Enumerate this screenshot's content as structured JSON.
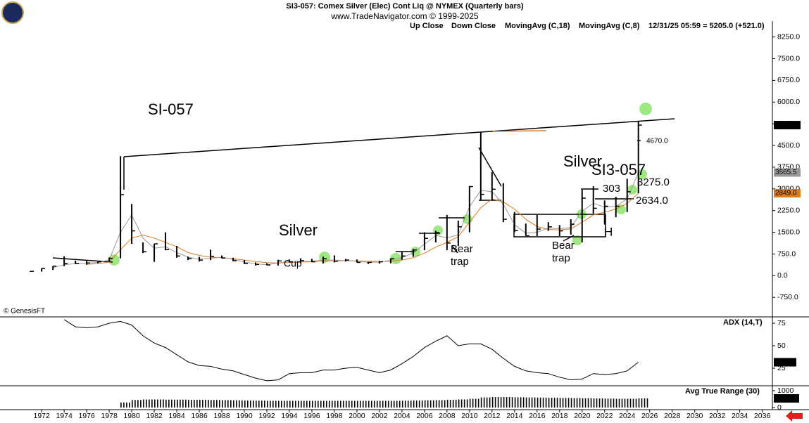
{
  "chart_data": [
    {
      "type": "ohlc",
      "title": "SI3-057:  Comex Silver (Elec) Cont Liq @ NYMEX  (Quarterly bars)",
      "subtitle": "www.TradeNavigator.com © 1999-2025",
      "status": "12/31/25 05:59 = 5205.0 (+521.0)",
      "credit": "© GenesisFT",
      "legend": [
        "Up Close",
        "Down Close"
      ],
      "color": "#000000",
      "x": [
        1971,
        1972,
        1973,
        1974,
        1975,
        1976,
        1977,
        1978,
        1979,
        1980,
        1981,
        1982,
        1983,
        1984,
        1985,
        1986,
        1987,
        1988,
        1989,
        1990,
        1991,
        1992,
        1993,
        1994,
        1995,
        1996,
        1997,
        1998,
        1999,
        2000,
        2001,
        2002,
        2003,
        2004,
        2005,
        2006,
        2007,
        2008,
        2009,
        2010,
        2011,
        2012,
        2013,
        2014,
        2015,
        2016,
        2017,
        2018,
        2019,
        2020,
        2021,
        2022,
        2023,
        2024,
        2025
      ],
      "high": [
        160,
        260,
        330,
        670,
        520,
        510,
        500,
        630,
        4130,
        2480,
        1150,
        1100,
        1500,
        1030,
        660,
        650,
        900,
        700,
        620,
        540,
        460,
        430,
        550,
        560,
        600,
        580,
        660,
        700,
        580,
        560,
        480,
        510,
        600,
        830,
        920,
        1500,
        1550,
        2100,
        1900,
        3100,
        4960,
        3580,
        3200,
        2200,
        1800,
        2100,
        1850,
        1750,
        1950,
        2970,
        3090,
        2600,
        2730,
        3350,
        5350
      ],
      "low": [
        130,
        140,
        200,
        330,
        400,
        380,
        430,
        480,
        600,
        1100,
        780,
        480,
        880,
        620,
        540,
        490,
        540,
        600,
        500,
        400,
        350,
        360,
        350,
        460,
        430,
        470,
        420,
        460,
        490,
        460,
        400,
        420,
        430,
        550,
        650,
        880,
        1150,
        880,
        1020,
        1500,
        2600,
        2600,
        1850,
        1500,
        1380,
        1370,
        1550,
        1370,
        1420,
        1150,
        2150,
        1770,
        2020,
        2200,
        2850
      ],
      "close": [
        150,
        250,
        330,
        420,
        420,
        440,
        480,
        600,
        2800,
        1550,
        830,
        1100,
        900,
        680,
        590,
        540,
        670,
        610,
        520,
        420,
        390,
        370,
        510,
        480,
        520,
        480,
        590,
        500,
        540,
        460,
        460,
        480,
        590,
        680,
        890,
        1290,
        1490,
        1130,
        1690,
        3080,
        2810,
        2990,
        1950,
        1560,
        1380,
        1610,
        1690,
        1550,
        1780,
        2680,
        2330,
        2400,
        2400,
        2900,
        5205
      ],
      "series": [
        {
          "name": "MovingAvg (C,18)",
          "color": "#e07a1f",
          "values": [
            null,
            null,
            null,
            null,
            null,
            390,
            420,
            470,
            900,
            1300,
            1400,
            1300,
            1150,
            1000,
            800,
            700,
            640,
            620,
            590,
            540,
            490,
            450,
            440,
            450,
            470,
            480,
            510,
            510,
            520,
            510,
            500,
            490,
            500,
            540,
            620,
            780,
            990,
            1150,
            1350,
            1850,
            2350,
            2650,
            2550,
            2300,
            1950,
            1700,
            1600,
            1580,
            1620,
            1850,
            2100,
            2200,
            2300,
            2500,
            2849
          ]
        },
        {
          "name": "MovingAvg (C,8)",
          "color": "#999999",
          "values": [
            null,
            null,
            280,
            380,
            420,
            430,
            460,
            540,
            1500,
            2100,
            1300,
            950,
            1000,
            800,
            640,
            570,
            600,
            640,
            570,
            470,
            410,
            380,
            440,
            490,
            500,
            500,
            540,
            540,
            520,
            500,
            460,
            470,
            530,
            630,
            780,
            1090,
            1390,
            1310,
            1410,
            2380,
            2950,
            2900,
            2470,
            1760,
            1470,
            1500,
            1650,
            1620,
            1670,
            2230,
            2500,
            2370,
            2400,
            2650,
            3565.5
          ]
        }
      ],
      "markers": [
        {
          "value": 5205,
          "label": "5205.0",
          "color": "#000000"
        },
        {
          "value": 3565.5,
          "label": "3565.5",
          "color": "#999999"
        },
        {
          "value": 2849,
          "label": "2849.0",
          "color": "#e07a1f"
        }
      ],
      "annotations": [
        "SI-057",
        "Silver",
        "Cup",
        "Bear",
        "trap",
        "Bear",
        "trap",
        "Silver",
        "SI3-057",
        "303",
        "3275.0",
        "2634.0",
        "4670.0",
        "H"
      ],
      "xlim": [
        1968.3,
        2036.9
      ],
      "ylim": [
        -1400,
        8800
      ],
      "yticks": [
        {
          "value": -750,
          "label": "-750.0"
        },
        {
          "value": 0,
          "label": "0.0"
        },
        {
          "value": 750,
          "label": "750.0"
        },
        {
          "value": 1500,
          "label": "1500.0"
        },
        {
          "value": 2250,
          "label": "2250.0"
        },
        {
          "value": 3000,
          "label": "3000.0"
        },
        {
          "value": 3750,
          "label": "3750.0"
        },
        {
          "value": 4500,
          "label": "4500.0"
        },
        {
          "value": 5250,
          "label": "5250.0"
        },
        {
          "value": 6000,
          "label": "6000.0"
        },
        {
          "value": 6750,
          "label": "6750.0"
        },
        {
          "value": 7500,
          "label": "7500.0"
        },
        {
          "value": 8250,
          "label": "8250.0"
        }
      ]
    },
    {
      "type": "line",
      "name": "ADX (14,T)",
      "color": "#000000",
      "x": [
        1974,
        1975,
        1976,
        1977,
        1978,
        1979,
        1980,
        1981,
        1982,
        1983,
        1984,
        1985,
        1986,
        1987,
        1988,
        1989,
        1990,
        1991,
        1992,
        1993,
        1994,
        1995,
        1996,
        1997,
        1998,
        1999,
        2000,
        2001,
        2002,
        2003,
        2004,
        2005,
        2006,
        2007,
        2008,
        2009,
        2010,
        2011,
        2012,
        2013,
        2014,
        2015,
        2016,
        2017,
        2018,
        2019,
        2020,
        2021,
        2022,
        2023,
        2024,
        2025
      ],
      "values": [
        79,
        71,
        70,
        71,
        75,
        77,
        73,
        61,
        53,
        48,
        40,
        32,
        28,
        27,
        24,
        22,
        18,
        14,
        11,
        12,
        19,
        20,
        20,
        23,
        23,
        25,
        26,
        23,
        20,
        23,
        30,
        38,
        48,
        55,
        61,
        50,
        52,
        52,
        46,
        36,
        27,
        22,
        20,
        19,
        15,
        12,
        13,
        19,
        18,
        19,
        22,
        31.61
      ],
      "xlim": [
        1968.3,
        2036.9
      ],
      "ylim": [
        6.25,
        81.25
      ],
      "yticks": [
        25,
        50,
        75
      ]
    },
    {
      "type": "bar",
      "name": "Avg True Range (30)",
      "color": "#000000",
      "x": [
        1979,
        1980,
        1981,
        1982,
        1983,
        1984,
        1985,
        1986,
        1987,
        1988,
        1989,
        1990,
        1991,
        1992,
        1993,
        1994,
        1995,
        1996,
        1997,
        1998,
        1999,
        2000,
        2001,
        2002,
        2003,
        2004,
        2005,
        2006,
        2007,
        2008,
        2009,
        2010,
        2011,
        2012,
        2013,
        2014,
        2015,
        2016,
        2017,
        2018,
        2019,
        2020,
        2021,
        2022,
        2023,
        2024,
        2025
      ],
      "values": [
        300,
        450,
        480,
        480,
        470,
        470,
        460,
        460,
        450,
        440,
        430,
        420,
        410,
        400,
        400,
        400,
        400,
        400,
        400,
        400,
        400,
        400,
        400,
        400,
        400,
        410,
        420,
        430,
        440,
        460,
        480,
        520,
        600,
        620,
        620,
        610,
        600,
        590,
        580,
        570,
        560,
        550,
        540,
        530,
        520,
        520,
        544.13
      ],
      "xlim": [
        1968.3,
        2036.9
      ],
      "ylim": [
        -83,
        1250
      ],
      "yticks": [
        0,
        1000
      ],
      "xticks": [
        1972,
        1974,
        1976,
        1978,
        1980,
        1982,
        1984,
        1986,
        1988,
        1990,
        1992,
        1994,
        1996,
        1998,
        2000,
        2002,
        2004,
        2006,
        2008,
        2010,
        2012,
        2014,
        2016,
        2018,
        2020,
        2022,
        2024,
        2026,
        2028,
        2030,
        2032,
        2034,
        2036
      ]
    }
  ]
}
